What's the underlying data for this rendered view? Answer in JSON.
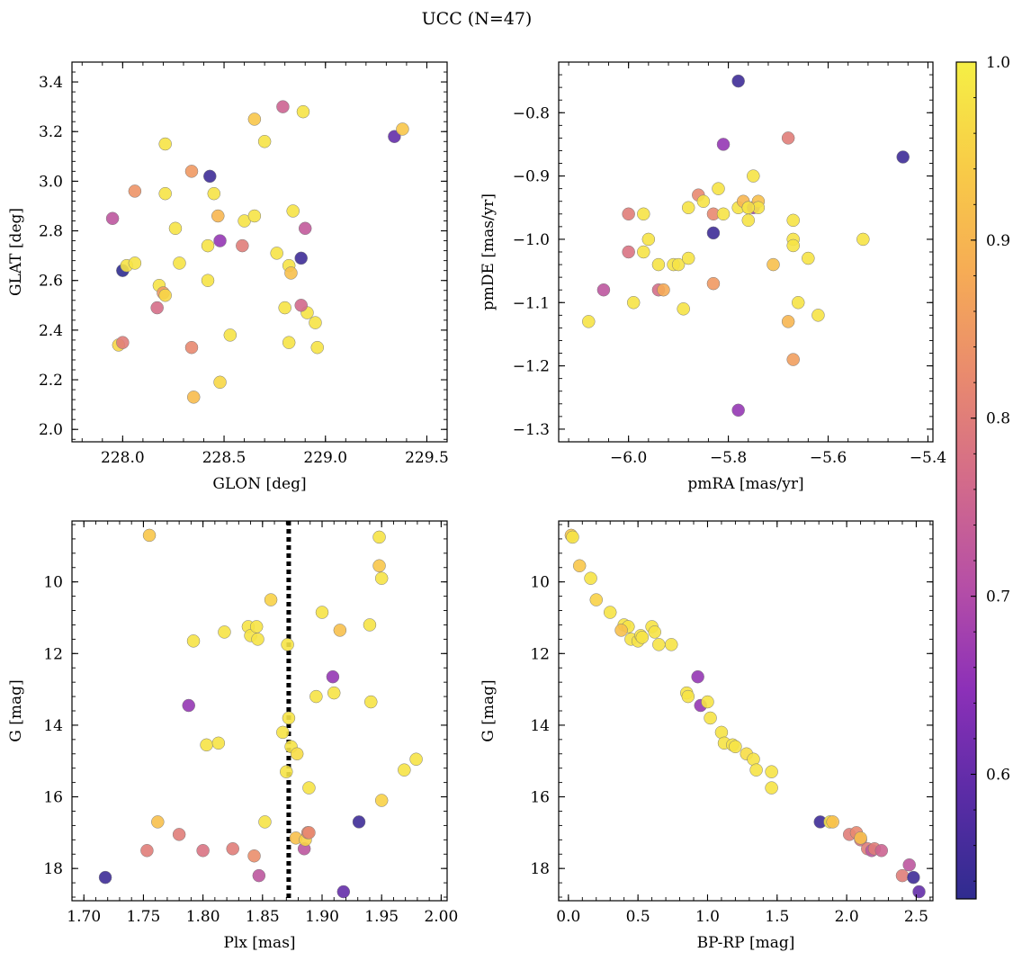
{
  "figure": {
    "title": "UCC (N=47)",
    "colorbar": {
      "range": [
        0.53,
        1.0
      ],
      "ticks": [
        0.6,
        0.7,
        0.8,
        0.9,
        1.0
      ],
      "tick_labels": [
        "0.6",
        "0.7",
        "0.8",
        "0.9",
        "1.0"
      ],
      "colormap": "plasma",
      "stops": [
        "#2f2c8f",
        "#5b2ca6",
        "#8c30b8",
        "#b64fa6",
        "#d36b8a",
        "#e98a6e",
        "#f6ac55",
        "#f8cc47",
        "#f5ef45"
      ]
    }
  },
  "chart_data": [
    {
      "type": "scatter",
      "panel": "top-left",
      "title": "",
      "xlabel": "GLON [deg]",
      "ylabel": "GLAT [deg]",
      "xlim": [
        227.75,
        229.6
      ],
      "ylim": [
        1.95,
        3.48
      ],
      "xticks": [
        228.0,
        228.5,
        229.0,
        229.5
      ],
      "xtick_labels": [
        "228.0",
        "228.5",
        "229.0",
        "229.5"
      ],
      "yticks": [
        2.0,
        2.2,
        2.4,
        2.6,
        2.8,
        3.0,
        3.2,
        3.4
      ],
      "ytick_labels": [
        "2.0",
        "2.2",
        "2.4",
        "2.6",
        "2.8",
        "3.0",
        "3.2",
        "3.4"
      ],
      "x": [
        227.95,
        228.0,
        228.06,
        228.21,
        227.98,
        228.02,
        228.06,
        228.18,
        228.2,
        228.21,
        228.17,
        228.26,
        228.28,
        228.34,
        228.43,
        228.42,
        228.45,
        228.47,
        228.48,
        228.59,
        228.6,
        228.65,
        228.65,
        228.7,
        228.76,
        228.8,
        228.82,
        228.83,
        228.84,
        228.88,
        228.9,
        228.91,
        228.95,
        228.96,
        228.79,
        228.89,
        229.34,
        229.38,
        228.34,
        228.35,
        228.48,
        228.53,
        228.21,
        228.0,
        228.88,
        228.82,
        228.42
      ],
      "y": [
        2.85,
        2.64,
        2.96,
        3.15,
        2.34,
        2.66,
        2.67,
        2.58,
        2.55,
        2.95,
        2.49,
        2.81,
        2.67,
        3.04,
        3.02,
        2.74,
        2.95,
        2.86,
        2.76,
        2.74,
        2.84,
        2.86,
        3.25,
        3.16,
        2.71,
        2.49,
        2.66,
        2.63,
        2.88,
        2.69,
        2.81,
        2.47,
        2.43,
        2.33,
        3.3,
        3.28,
        3.18,
        3.21,
        2.33,
        2.13,
        2.19,
        2.38,
        2.54,
        2.35,
        2.5,
        2.35,
        2.6
      ],
      "c": [
        0.72,
        0.53,
        0.84,
        0.98,
        0.96,
        0.98,
        0.98,
        0.98,
        0.85,
        0.98,
        0.77,
        0.98,
        0.98,
        0.85,
        0.55,
        0.98,
        0.98,
        0.9,
        0.66,
        0.8,
        0.98,
        0.98,
        0.93,
        0.98,
        0.98,
        0.98,
        0.98,
        0.92,
        0.98,
        0.55,
        0.73,
        0.98,
        0.98,
        0.98,
        0.75,
        0.98,
        0.6,
        0.93,
        0.82,
        0.91,
        0.96,
        0.98,
        0.96,
        0.8,
        0.76,
        0.98,
        0.98
      ]
    },
    {
      "type": "scatter",
      "panel": "top-right",
      "title": "",
      "xlabel": "pmRA [mas/yr]",
      "ylabel": "pmDE [mas/yr]",
      "xlim": [
        -6.14,
        -5.39
      ],
      "ylim": [
        -1.32,
        -0.72
      ],
      "xticks": [
        -6.0,
        -5.8,
        -5.6,
        -5.4
      ],
      "xtick_labels": [
        "−6.0",
        "−5.8",
        "−5.6",
        "−5.4"
      ],
      "yticks": [
        -1.3,
        -1.2,
        -1.1,
        -1.0,
        -0.9,
        -0.8
      ],
      "ytick_labels": [
        "−1.3",
        "−1.2",
        "−1.1",
        "−1.0",
        "−0.9",
        "−0.8"
      ],
      "x": [
        -6.08,
        -6.05,
        -6.0,
        -6.0,
        -5.99,
        -5.97,
        -5.97,
        -5.96,
        -5.94,
        -5.94,
        -5.93,
        -5.91,
        -5.9,
        -5.89,
        -5.88,
        -5.88,
        -5.86,
        -5.85,
        -5.83,
        -5.83,
        -5.82,
        -5.83,
        -5.81,
        -5.81,
        -5.78,
        -5.78,
        -5.77,
        -5.76,
        -5.76,
        -5.75,
        -5.74,
        -5.75,
        -5.74,
        -5.71,
        -5.68,
        -5.68,
        -5.67,
        -5.67,
        -5.67,
        -5.67,
        -5.66,
        -5.64,
        -5.62,
        -5.53,
        -5.45,
        -5.78,
        -5.76
      ],
      "y": [
        -1.13,
        -1.08,
        -0.96,
        -1.02,
        -1.1,
        -1.02,
        -0.96,
        -1.0,
        -1.04,
        -1.08,
        -1.08,
        -1.04,
        -1.04,
        -1.11,
        -1.03,
        -0.95,
        -0.93,
        -0.94,
        -0.96,
        -0.99,
        -0.92,
        -1.07,
        -0.96,
        -0.85,
        -0.75,
        -0.95,
        -0.94,
        -0.95,
        -0.97,
        -0.95,
        -0.94,
        -0.9,
        -0.95,
        -1.04,
        -1.13,
        -0.84,
        -1.0,
        -1.01,
        -0.97,
        -1.19,
        -1.1,
        -1.03,
        -1.12,
        -1.0,
        -0.87,
        -1.27,
        -0.95
      ],
      "c": [
        0.98,
        0.72,
        0.8,
        0.78,
        0.98,
        0.98,
        0.98,
        0.98,
        0.98,
        0.77,
        0.88,
        0.98,
        0.98,
        0.98,
        0.98,
        0.98,
        0.82,
        0.98,
        0.82,
        0.55,
        0.98,
        0.85,
        0.98,
        0.66,
        0.55,
        0.98,
        0.9,
        0.98,
        0.98,
        0.68,
        0.92,
        0.98,
        0.98,
        0.92,
        0.9,
        0.8,
        0.98,
        0.98,
        0.98,
        0.86,
        0.98,
        0.98,
        0.98,
        0.98,
        0.55,
        0.66,
        0.98
      ]
    },
    {
      "type": "scatter",
      "panel": "bottom-left",
      "title": "",
      "xlabel": "Plx [mas]",
      "ylabel": "G [mag]",
      "xlim": [
        1.69,
        2.005
      ],
      "ylim": [
        18.9,
        8.3
      ],
      "y_inverted": true,
      "xticks": [
        1.7,
        1.75,
        1.8,
        1.85,
        1.9,
        1.95,
        2.0
      ],
      "xtick_labels": [
        "1.70",
        "1.75",
        "1.80",
        "1.85",
        "1.90",
        "1.95",
        "2.00"
      ],
      "yticks": [
        10,
        12,
        14,
        16,
        18
      ],
      "ytick_labels": [
        "10",
        "12",
        "14",
        "16",
        "18"
      ],
      "vline": 1.872,
      "x": [
        1.718,
        1.753,
        1.755,
        1.762,
        1.78,
        1.788,
        1.792,
        1.8,
        1.803,
        1.813,
        1.818,
        1.825,
        1.838,
        1.84,
        1.843,
        1.845,
        1.846,
        1.847,
        1.852,
        1.857,
        1.867,
        1.87,
        1.871,
        1.872,
        1.874,
        1.878,
        1.879,
        1.885,
        1.886,
        1.888,
        1.889,
        1.889,
        1.895,
        1.9,
        1.909,
        1.91,
        1.915,
        1.918,
        1.931,
        1.94,
        1.941,
        1.948,
        1.948,
        1.95,
        1.95,
        1.969,
        1.979
      ],
      "y": [
        18.25,
        17.5,
        8.7,
        16.7,
        17.05,
        13.45,
        11.65,
        17.5,
        14.55,
        14.5,
        11.4,
        17.45,
        11.25,
        11.5,
        17.65,
        11.25,
        11.6,
        18.2,
        16.7,
        10.5,
        14.2,
        15.3,
        11.75,
        13.8,
        14.6,
        17.15,
        14.8,
        17.45,
        17.2,
        17.0,
        15.75,
        17.0,
        13.2,
        10.85,
        12.65,
        13.1,
        11.35,
        18.65,
        16.7,
        11.2,
        13.35,
        9.55,
        8.75,
        16.1,
        9.9,
        15.25,
        14.95
      ],
      "c": [
        0.55,
        0.8,
        0.93,
        0.92,
        0.8,
        0.66,
        0.98,
        0.78,
        0.98,
        0.98,
        0.98,
        0.8,
        0.98,
        0.98,
        0.83,
        0.98,
        0.98,
        0.72,
        0.98,
        0.95,
        0.98,
        0.98,
        0.98,
        0.98,
        0.98,
        0.92,
        0.97,
        0.72,
        0.95,
        0.82,
        0.98,
        0.82,
        0.98,
        0.98,
        0.66,
        0.98,
        0.92,
        0.6,
        0.55,
        0.98,
        0.98,
        0.93,
        0.98,
        0.95,
        0.98,
        0.98,
        0.98
      ]
    },
    {
      "type": "scatter",
      "panel": "bottom-right",
      "title": "",
      "xlabel": "BP-RP [mag]",
      "ylabel": "G [mag]",
      "xlim": [
        -0.07,
        2.62
      ],
      "ylim": [
        18.9,
        8.3
      ],
      "y_inverted": true,
      "xticks": [
        0.0,
        0.5,
        1.0,
        1.5,
        2.0,
        2.5
      ],
      "xtick_labels": [
        "0.0",
        "0.5",
        "1.0",
        "1.5",
        "2.0",
        "2.5"
      ],
      "yticks": [
        10,
        12,
        14,
        16,
        18
      ],
      "ytick_labels": [
        "10",
        "12",
        "14",
        "16",
        "18"
      ],
      "x": [
        0.02,
        0.03,
        0.08,
        0.16,
        0.2,
        0.3,
        0.4,
        0.43,
        0.45,
        0.5,
        0.52,
        0.53,
        0.6,
        0.62,
        0.65,
        0.74,
        0.85,
        0.86,
        0.93,
        0.95,
        1.0,
        1.02,
        1.1,
        1.12,
        1.18,
        1.2,
        1.28,
        1.33,
        1.35,
        1.46,
        1.46,
        1.81,
        1.88,
        1.9,
        2.02,
        2.07,
        2.1,
        2.15,
        2.18,
        2.2,
        2.25,
        2.1,
        2.4,
        2.45,
        2.48,
        2.52,
        0.38
      ],
      "y": [
        8.7,
        8.75,
        9.55,
        9.9,
        10.5,
        10.85,
        11.2,
        11.25,
        11.6,
        11.65,
        11.5,
        11.55,
        11.25,
        11.4,
        11.75,
        11.75,
        13.1,
        13.2,
        12.65,
        13.45,
        13.35,
        13.8,
        14.2,
        14.5,
        14.55,
        14.6,
        14.8,
        14.95,
        15.25,
        15.3,
        15.75,
        16.7,
        16.7,
        16.7,
        17.05,
        17.0,
        17.2,
        17.45,
        17.5,
        17.45,
        17.5,
        17.15,
        18.2,
        17.9,
        18.25,
        18.65,
        11.35
      ],
      "c": [
        0.93,
        0.98,
        0.93,
        0.98,
        0.95,
        0.98,
        0.98,
        0.98,
        0.98,
        0.98,
        0.98,
        0.98,
        0.98,
        0.98,
        0.98,
        0.98,
        0.98,
        0.98,
        0.66,
        0.66,
        0.98,
        0.98,
        0.98,
        0.98,
        0.98,
        0.98,
        0.97,
        0.98,
        0.98,
        0.98,
        0.98,
        0.55,
        0.98,
        0.92,
        0.8,
        0.82,
        0.78,
        0.8,
        0.72,
        0.8,
        0.75,
        0.92,
        0.8,
        0.72,
        0.55,
        0.6,
        0.92
      ]
    }
  ]
}
